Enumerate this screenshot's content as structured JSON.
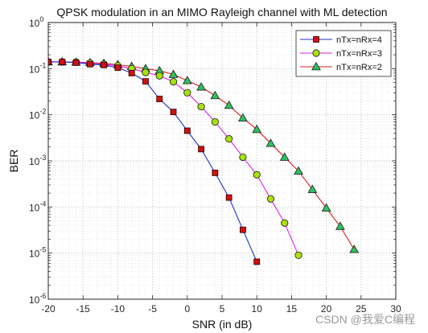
{
  "chart_data": {
    "type": "line",
    "title": "QPSK modulation in an MIMO Rayleigh channel with ML detection",
    "xlabel": "SNR (in dB)",
    "ylabel": "BER",
    "xlim": [
      -20,
      30
    ],
    "ylim": [
      1e-06,
      1
    ],
    "yscale": "log",
    "grid": true,
    "minor_grid": true,
    "legend_position": "top-right",
    "xticks": [
      -20,
      -15,
      -10,
      -5,
      0,
      5,
      10,
      15,
      20,
      25,
      30
    ],
    "xtick_labels": [
      "-20",
      "-15",
      "-10",
      "-5",
      "0",
      "5",
      "10",
      "15",
      "20",
      "25",
      "30"
    ],
    "yticks": [
      {
        "value": 1,
        "mantissa": "10",
        "exponent": "0"
      },
      {
        "value": 0.1,
        "mantissa": "10",
        "exponent": "-1"
      },
      {
        "value": 0.01,
        "mantissa": "10",
        "exponent": "-2"
      },
      {
        "value": 0.001,
        "mantissa": "10",
        "exponent": "-3"
      },
      {
        "value": 0.0001,
        "mantissa": "10",
        "exponent": "-4"
      },
      {
        "value": 1e-05,
        "mantissa": "10",
        "exponent": "-5"
      },
      {
        "value": 1e-06,
        "mantissa": "10",
        "exponent": "-6"
      }
    ],
    "series": [
      {
        "name": "nTx=nRx=4",
        "line_color": "#1f2fc8",
        "marker": "square",
        "marker_fill": "#d01010",
        "x": [
          -20,
          -18,
          -16,
          -14,
          -12,
          -10,
          -8,
          -6,
          -4,
          -2,
          0,
          2,
          4,
          6,
          8,
          10
        ],
        "y": [
          0.14,
          0.14,
          0.135,
          0.125,
          0.12,
          0.105,
          0.08,
          0.053,
          0.022,
          0.0115,
          0.0045,
          0.0018,
          0.00055,
          0.00016,
          3.2e-05,
          6.5e-06
        ]
      },
      {
        "name": "nTx=nRx=3",
        "line_color": "#e020e0",
        "marker": "circle",
        "marker_fill": "#a8e010",
        "x": [
          -20,
          -18,
          -16,
          -14,
          -12,
          -10,
          -8,
          -6,
          -4,
          -2,
          0,
          2,
          4,
          6,
          8,
          10,
          12,
          14,
          16
        ],
        "y": [
          0.14,
          0.14,
          0.138,
          0.132,
          0.125,
          0.115,
          0.1,
          0.083,
          0.07,
          0.052,
          0.03,
          0.015,
          0.007,
          0.003,
          0.0012,
          0.0005,
          0.00015,
          4.5e-05,
          9e-06
        ]
      },
      {
        "name": "nTx=nRx=2",
        "line_color": "#d82020",
        "marker": "triangle",
        "marker_fill": "#30c060",
        "x": [
          -20,
          -18,
          -16,
          -14,
          -12,
          -10,
          -8,
          -6,
          -4,
          -2,
          0,
          2,
          4,
          6,
          8,
          10,
          12,
          14,
          16,
          18,
          20,
          22,
          24
        ],
        "y": [
          0.14,
          0.14,
          0.138,
          0.135,
          0.13,
          0.122,
          0.112,
          0.1,
          0.09,
          0.075,
          0.055,
          0.04,
          0.026,
          0.016,
          0.0085,
          0.0048,
          0.0024,
          0.0012,
          0.0006,
          0.00024,
          9.5e-05,
          3.8e-05,
          1.2e-05
        ]
      }
    ]
  },
  "watermark": "CSDN @我爱C编程"
}
